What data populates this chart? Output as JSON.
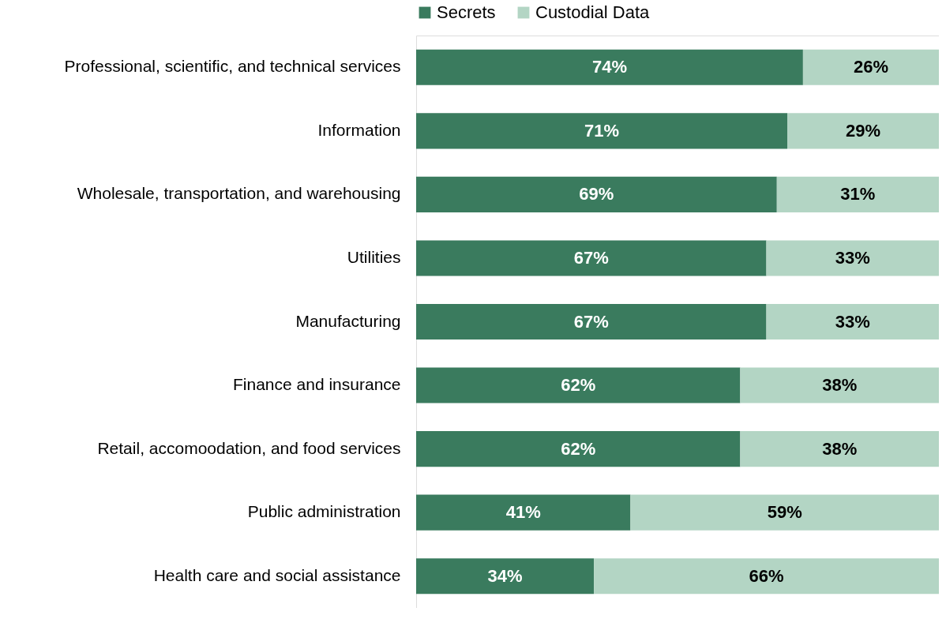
{
  "chart_data": {
    "type": "bar",
    "orientation": "horizontal",
    "stacked": true,
    "legend": "top",
    "tick_labels": "y",
    "xlim": [
      0,
      100
    ],
    "categories": [
      "Professional, scientific, and technical services",
      "Information",
      "Wholesale, transportation, and warehousing",
      "Utilities",
      "Manufacturing",
      "Finance and insurance",
      "Retail, accomoodation, and food services",
      "Public administration",
      "Health care and social assistance"
    ],
    "series": [
      {
        "name": "Secrets",
        "color": "#3a7b5e",
        "values": [
          74,
          71,
          69,
          67,
          67,
          62,
          62,
          41,
          34
        ],
        "value_labels": [
          "74%",
          "71%",
          "69%",
          "67%",
          "67%",
          "62%",
          "62%",
          "41%",
          "34%"
        ]
      },
      {
        "name": "Custodial Data",
        "color": "#b3d5c4",
        "values": [
          26,
          29,
          31,
          33,
          33,
          38,
          38,
          59,
          66
        ],
        "value_labels": [
          "26%",
          "29%",
          "31%",
          "33%",
          "33%",
          "38%",
          "38%",
          "59%",
          "66%"
        ]
      }
    ]
  }
}
